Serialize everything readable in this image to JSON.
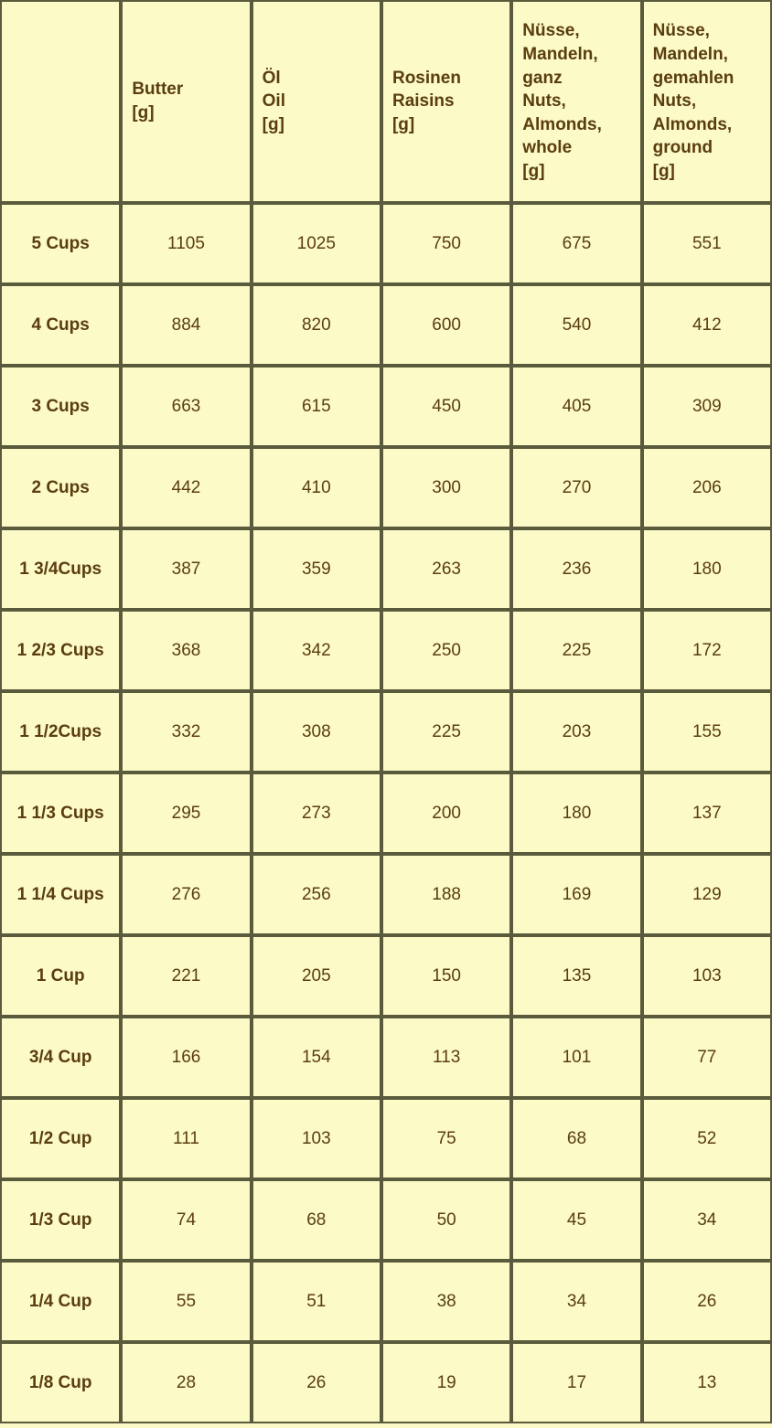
{
  "table": {
    "background_color": "#fcfac7",
    "border_color": "#5a5a3c",
    "text_color": "#5a3d10",
    "header_fontsize": 19,
    "cell_fontsize": 19,
    "columns": [
      "Butter\n[g]",
      "Öl\nOil\n[g]",
      "Rosinen\nRaisins\n[g]",
      "Nüsse, Mandeln, ganz\nNuts, Almonds, whole\n[g]",
      "Nüsse, Mandeln, gemahlen\nNuts, Almonds, ground\n[g]"
    ],
    "row_labels": [
      "5 Cups",
      "4 Cups",
      "3 Cups",
      "2 Cups",
      "1 3/4Cups",
      "1 2/3 Cups",
      "1 1/2Cups",
      "1 1/3 Cups",
      "1 1/4 Cups",
      "1 Cup",
      "3/4 Cup",
      "1/2 Cup",
      "1/3 Cup",
      "1/4 Cup",
      "1/8 Cup"
    ],
    "rows": [
      [
        1105,
        1025,
        750,
        675,
        551
      ],
      [
        884,
        820,
        600,
        540,
        412
      ],
      [
        663,
        615,
        450,
        405,
        309
      ],
      [
        442,
        410,
        300,
        270,
        206
      ],
      [
        387,
        359,
        263,
        236,
        180
      ],
      [
        368,
        342,
        250,
        225,
        172
      ],
      [
        332,
        308,
        225,
        203,
        155
      ],
      [
        295,
        273,
        200,
        180,
        137
      ],
      [
        276,
        256,
        188,
        169,
        129
      ],
      [
        221,
        205,
        150,
        135,
        103
      ],
      [
        166,
        154,
        113,
        101,
        77
      ],
      [
        111,
        103,
        75,
        68,
        52
      ],
      [
        74,
        68,
        50,
        45,
        34
      ],
      [
        55,
        51,
        38,
        34,
        26
      ],
      [
        28,
        26,
        19,
        17,
        13
      ]
    ]
  }
}
